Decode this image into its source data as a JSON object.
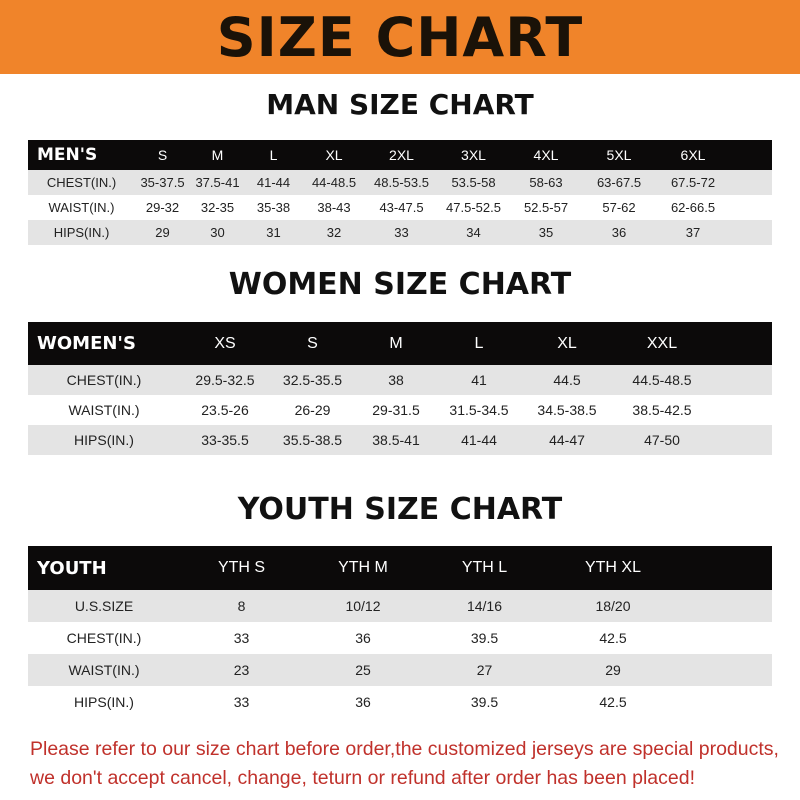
{
  "banner_title": "SIZE CHART",
  "colors": {
    "banner": "#f0842a",
    "header_row": "#0c0a0a",
    "stripe": "#e4e4e4",
    "note": "#c0312b"
  },
  "men": {
    "title": "MAN SIZE CHART",
    "header": [
      "MEN'S",
      "S",
      "M",
      "L",
      "XL",
      "2XL",
      "3XL",
      "4XL",
      "5XL",
      "6XL"
    ],
    "rows": [
      [
        "CHEST(IN.)",
        "35-37.5",
        "37.5-41",
        "41-44",
        "44-48.5",
        "48.5-53.5",
        "53.5-58",
        "58-63",
        "63-67.5",
        "67.5-72"
      ],
      [
        "WAIST(IN.)",
        "29-32",
        "32-35",
        "35-38",
        "38-43",
        "43-47.5",
        "47.5-52.5",
        "52.5-57",
        "57-62",
        "62-66.5"
      ],
      [
        "HIPS(IN.)",
        "29",
        "30",
        "31",
        "32",
        "33",
        "34",
        "35",
        "36",
        "37"
      ]
    ]
  },
  "women": {
    "title": "WOMEN SIZE CHART",
    "header": [
      "WOMEN'S",
      "XS",
      "S",
      "M",
      "L",
      "XL",
      "XXL"
    ],
    "rows": [
      [
        "CHEST(IN.)",
        "29.5-32.5",
        "32.5-35.5",
        "38",
        "41",
        "44.5",
        "44.5-48.5"
      ],
      [
        "WAIST(IN.)",
        "23.5-26",
        "26-29",
        "29-31.5",
        "31.5-34.5",
        "34.5-38.5",
        "38.5-42.5"
      ],
      [
        "HIPS(IN.)",
        "33-35.5",
        "35.5-38.5",
        "38.5-41",
        "41-44",
        "44-47",
        "47-50"
      ]
    ]
  },
  "youth": {
    "title": "YOUTH SIZE CHART",
    "header": [
      "YOUTH",
      "YTH S",
      "YTH M",
      "YTH L",
      "YTH XL"
    ],
    "rows": [
      [
        "U.S.SIZE",
        "8",
        "10/12",
        "14/16",
        "18/20"
      ],
      [
        "CHEST(IN.)",
        "33",
        "36",
        "39.5",
        "42.5"
      ],
      [
        "WAIST(IN.)",
        "23",
        "25",
        "27",
        "29"
      ],
      [
        "HIPS(IN.)",
        "33",
        "36",
        "39.5",
        "42.5"
      ]
    ]
  },
  "note": [
    "Please refer to our size chart before order,the customized jerseys are special products,",
    "we don't accept cancel, change, teturn or refund after order has been placed!"
  ]
}
